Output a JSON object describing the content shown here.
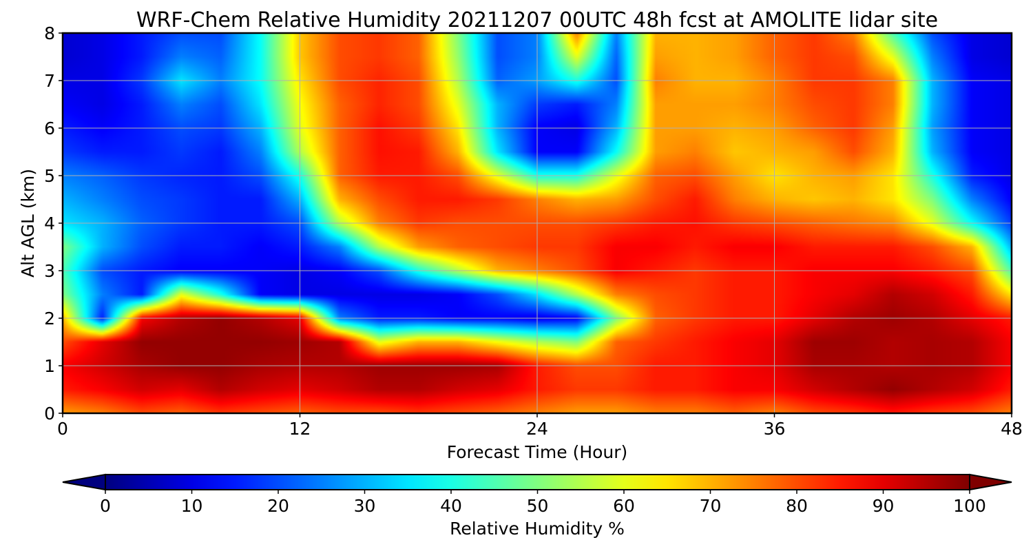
{
  "chart_data": {
    "type": "heatmap",
    "title": "WRF-Chem Relative Humidity 20211207 00UTC 48h fcst at AMOLITE lidar site",
    "xlabel": "Forecast Time (Hour)",
    "ylabel": "Alt AGL (km)",
    "xlim": [
      0,
      48
    ],
    "ylim": [
      0,
      8
    ],
    "xticks": [
      "0",
      "12",
      "24",
      "36",
      "48"
    ],
    "yticks": [
      "0",
      "1",
      "2",
      "3",
      "4",
      "5",
      "6",
      "7",
      "8"
    ],
    "grid": true,
    "colormap": "jet",
    "colorbar": {
      "label": "Relative Humidity %",
      "range": [
        0,
        100
      ],
      "ticks": [
        "0",
        "10",
        "20",
        "30",
        "40",
        "50",
        "60",
        "70",
        "80",
        "90",
        "100"
      ],
      "extend": "both"
    },
    "x": [
      0,
      2,
      4,
      6,
      8,
      10,
      12,
      14,
      16,
      18,
      20,
      22,
      24,
      26,
      28,
      30,
      32,
      34,
      36,
      38,
      40,
      42,
      44,
      46,
      48
    ],
    "y": [
      0,
      0.5,
      1,
      1.5,
      2,
      2.5,
      3,
      3.5,
      4,
      4.5,
      5,
      5.5,
      6,
      6.5,
      7,
      7.5,
      8
    ],
    "z": [
      [
        72,
        75,
        80,
        78,
        82,
        80,
        78,
        80,
        80,
        82,
        80,
        78,
        75,
        72,
        72,
        75,
        75,
        78,
        75,
        80,
        82,
        85,
        82,
        80,
        75
      ],
      [
        85,
        88,
        92,
        90,
        95,
        92,
        90,
        92,
        95,
        95,
        92,
        90,
        85,
        82,
        82,
        85,
        85,
        88,
        88,
        92,
        95,
        98,
        95,
        92,
        85
      ],
      [
        88,
        92,
        96,
        98,
        98,
        96,
        95,
        95,
        97,
        97,
        97,
        96,
        85,
        80,
        80,
        85,
        85,
        88,
        90,
        96,
        96,
        95,
        96,
        95,
        88
      ],
      [
        80,
        90,
        98,
        98,
        98,
        98,
        97,
        95,
        60,
        70,
        70,
        62,
        55,
        50,
        78,
        82,
        85,
        88,
        90,
        97,
        97,
        95,
        96,
        95,
        88
      ],
      [
        70,
        15,
        88,
        95,
        98,
        95,
        90,
        25,
        15,
        15,
        12,
        12,
        10,
        12,
        50,
        78,
        82,
        85,
        85,
        90,
        95,
        97,
        95,
        90,
        85
      ],
      [
        50,
        25,
        15,
        60,
        40,
        12,
        10,
        10,
        10,
        10,
        12,
        20,
        35,
        55,
        75,
        80,
        82,
        85,
        85,
        88,
        90,
        95,
        92,
        85,
        65
      ],
      [
        45,
        20,
        15,
        12,
        12,
        12,
        10,
        12,
        20,
        40,
        55,
        70,
        75,
        80,
        88,
        85,
        82,
        85,
        85,
        88,
        88,
        88,
        85,
        80,
        45
      ],
      [
        50,
        30,
        20,
        15,
        15,
        12,
        15,
        25,
        55,
        72,
        78,
        80,
        82,
        82,
        88,
        88,
        85,
        88,
        88,
        85,
        85,
        85,
        80,
        70,
        30
      ],
      [
        35,
        30,
        22,
        18,
        15,
        15,
        20,
        55,
        75,
        82,
        80,
        80,
        80,
        80,
        82,
        85,
        86,
        82,
        80,
        78,
        76,
        74,
        60,
        38,
        18
      ],
      [
        30,
        25,
        20,
        18,
        15,
        15,
        30,
        70,
        80,
        85,
        85,
        82,
        75,
        70,
        72,
        80,
        85,
        75,
        70,
        68,
        70,
        65,
        50,
        25,
        12
      ],
      [
        25,
        22,
        18,
        16,
        15,
        20,
        40,
        78,
        85,
        85,
        80,
        60,
        40,
        40,
        60,
        78,
        80,
        72,
        65,
        70,
        72,
        65,
        40,
        15,
        10
      ],
      [
        18,
        15,
        15,
        18,
        15,
        25,
        55,
        78,
        86,
        85,
        70,
        35,
        12,
        12,
        38,
        72,
        75,
        68,
        70,
        72,
        80,
        70,
        30,
        12,
        10
      ],
      [
        15,
        12,
        15,
        20,
        18,
        30,
        60,
        78,
        86,
        82,
        65,
        30,
        12,
        10,
        30,
        72,
        72,
        70,
        72,
        78,
        82,
        72,
        28,
        12,
        10
      ],
      [
        12,
        10,
        15,
        25,
        20,
        35,
        62,
        78,
        84,
        80,
        60,
        30,
        18,
        15,
        25,
        72,
        72,
        72,
        75,
        80,
        82,
        75,
        30,
        12,
        10
      ],
      [
        10,
        10,
        18,
        35,
        25,
        38,
        65,
        80,
        84,
        80,
        55,
        22,
        28,
        40,
        20,
        75,
        70,
        70,
        75,
        82,
        82,
        75,
        30,
        12,
        10
      ],
      [
        8,
        10,
        15,
        25,
        22,
        38,
        68,
        80,
        82,
        78,
        52,
        20,
        25,
        60,
        22,
        72,
        70,
        72,
        78,
        82,
        80,
        60,
        25,
        10,
        8
      ],
      [
        8,
        10,
        15,
        20,
        20,
        38,
        68,
        80,
        82,
        78,
        50,
        20,
        25,
        75,
        25,
        70,
        70,
        72,
        78,
        82,
        75,
        45,
        20,
        10,
        8
      ]
    ]
  }
}
